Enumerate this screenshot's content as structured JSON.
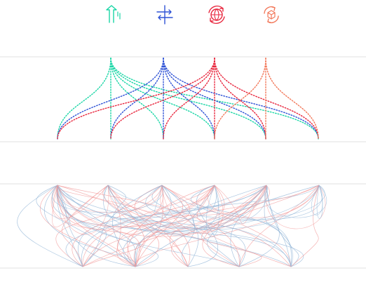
{
  "palette": {
    "teal": "#1ad6a6",
    "blue": "#2f53d6",
    "red": "#e8263d",
    "coral": "#f2785a",
    "separator": "#d8d8d8",
    "lower_red": "#f29a9a",
    "lower_blue": "#8fb3d6"
  },
  "icons": [
    {
      "name": "upload-arrow-icon",
      "color": "teal"
    },
    {
      "name": "swap-arrows-icon",
      "color": "blue"
    },
    {
      "name": "globe-cycle-icon",
      "color": "red"
    },
    {
      "name": "box-cycle-icon",
      "color": "coral"
    }
  ],
  "diagram": {
    "upper_panel": {
      "style": "dotted fan-out arcs",
      "bottom_nodes": 6,
      "sources": [
        {
          "color": "teal",
          "source_index": 1,
          "targets": [
            0,
            1,
            2,
            3,
            4,
            5
          ]
        },
        {
          "color": "blue",
          "source_index": 2,
          "targets": [
            0,
            1,
            2,
            3,
            4,
            5
          ]
        },
        {
          "color": "red",
          "source_index": 3,
          "targets": [
            0,
            1,
            2,
            3,
            4,
            5
          ]
        },
        {
          "color": "coral",
          "source_index": 4,
          "targets": [
            3,
            4,
            5
          ]
        }
      ]
    },
    "lower_panel": {
      "style": "thin tangled curves between two node rows",
      "top_nodes": 6,
      "bottom_nodes": 5,
      "colors": [
        "lower_red",
        "lower_blue"
      ]
    }
  }
}
